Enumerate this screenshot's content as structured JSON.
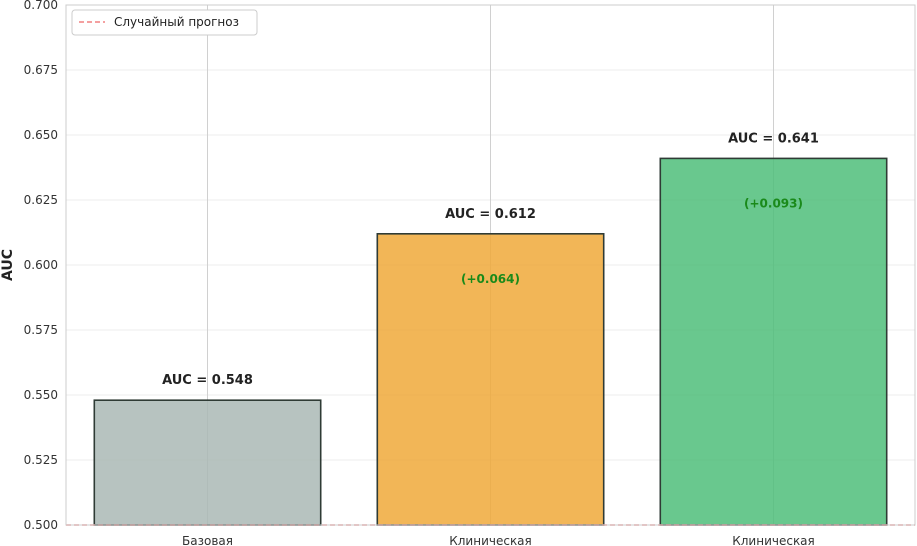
{
  "chart_data": {
    "type": "bar",
    "categories": [
      "Базовая",
      "Клиническая",
      "Клиническая"
    ],
    "values": [
      0.548,
      0.612,
      0.641
    ],
    "colors": [
      "#aab8b5",
      "#f0a93a",
      "#4fbe7a"
    ],
    "value_labels": [
      "AUC = 0.548",
      "AUC = 0.612",
      "AUC = 0.641"
    ],
    "delta_labels": [
      "",
      "(+0.064)",
      "(+0.093)"
    ],
    "delta_color": "#1a8a1a",
    "ylabel": "AUC",
    "xlabel": "",
    "ylim": [
      0.5,
      0.7
    ],
    "yticks": [
      "0.500",
      "0.525",
      "0.550",
      "0.575",
      "0.600",
      "0.625",
      "0.650",
      "0.675",
      "0.700"
    ],
    "ytick_values": [
      0.5,
      0.525,
      0.55,
      0.575,
      0.6,
      0.625,
      0.65,
      0.675,
      0.7
    ],
    "reference_line": {
      "label": "Случайный прогноз",
      "value": 0.5,
      "color": "#f08080",
      "style": "dashed"
    },
    "legend": {
      "position": "top-left",
      "entries": [
        "Случайный прогноз"
      ]
    },
    "grid": true
  }
}
